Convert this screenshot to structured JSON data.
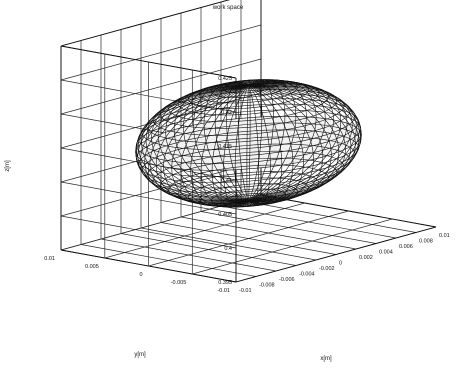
{
  "chart_data": {
    "type": "surface3d",
    "title": "work space",
    "xlabel": "x[m]",
    "ylabel": "y[m]",
    "zlabel": "z[m]",
    "xlim": [
      -0.01,
      0.01
    ],
    "ylim": [
      -0.01,
      0.01
    ],
    "zlim": [
      0.395,
      0.425
    ],
    "x_ticks": [
      "-0.01",
      "-0.008",
      "-0.006",
      "-0.004",
      "-0.002",
      "0",
      "0.002",
      "0.004",
      "0.006",
      "0.008",
      "0.01"
    ],
    "y_ticks": [
      "-0.01",
      "-0.005",
      "0",
      "0.005",
      "0.01"
    ],
    "z_ticks": [
      "0.395",
      "0.4",
      "0.405",
      "0.41",
      "0.415",
      "0.42",
      "0.425"
    ],
    "grid": true,
    "surface": {
      "shape": "ellipsoid",
      "center": [
        0,
        0,
        0.409
      ],
      "semi_axes": [
        0.0085,
        0.0085,
        0.0085
      ],
      "meridians": 60,
      "parallels": 28
    }
  }
}
